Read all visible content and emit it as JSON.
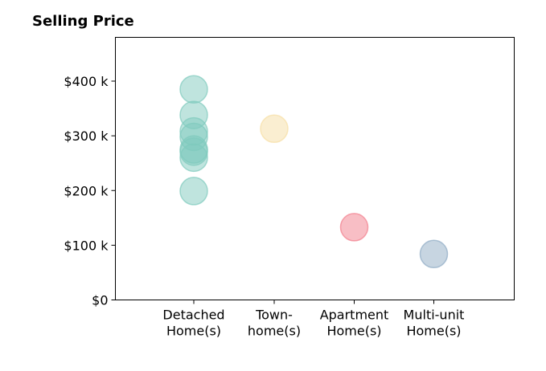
{
  "chart_data": {
    "type": "scatter",
    "title": "Selling Price",
    "xlabel": "",
    "ylabel": "",
    "categories": [
      [
        "Detached",
        "Home(s)"
      ],
      [
        "Town-",
        "home(s)"
      ],
      [
        "Apartment",
        "Home(s)"
      ],
      [
        "Multi-unit",
        "Home(s)"
      ]
    ],
    "yticks": [
      {
        "value": 0,
        "label": "$0"
      },
      {
        "value": 100000,
        "label": "$100 k"
      },
      {
        "value": 200000,
        "label": "$200 k"
      },
      {
        "value": 300000,
        "label": "$300 k"
      },
      {
        "value": 400000,
        "label": "$400 k"
      }
    ],
    "ylim": [
      0,
      480000
    ],
    "grid": false,
    "colors": [
      "#7fcabd",
      "#f6dea4",
      "#f27d8c",
      "#8fabc4"
    ],
    "points": [
      {
        "category": 0,
        "value": 385000
      },
      {
        "category": 0,
        "value": 338000
      },
      {
        "category": 0,
        "value": 308000
      },
      {
        "category": 0,
        "value": 298000
      },
      {
        "category": 0,
        "value": 275000
      },
      {
        "category": 0,
        "value": 271000
      },
      {
        "category": 0,
        "value": 260000
      },
      {
        "category": 0,
        "value": 199000
      },
      {
        "category": 1,
        "value": 313000
      },
      {
        "category": 2,
        "value": 133000
      },
      {
        "category": 3,
        "value": 84000
      }
    ]
  }
}
